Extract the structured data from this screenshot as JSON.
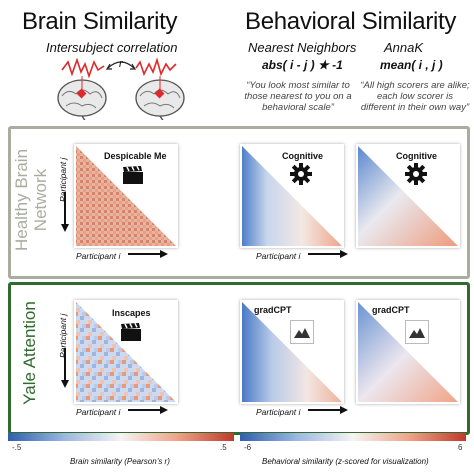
{
  "brain_similarity": {
    "title": "Brain Similarity",
    "subtitle": "Intersubject correlation",
    "r_label": "r"
  },
  "behavioral_similarity": {
    "title": "Behavioral Similarity",
    "models": [
      {
        "name": "Nearest Neighbors",
        "formula": "abs( i - j ) ★ -1",
        "quote": "“You look most similar to those nearest to you on a behavioral scale”"
      },
      {
        "name": "AnnaK",
        "formula": "mean( i , j )",
        "quote": "“All high scorers are alike; each low scorer is different in their own way”"
      }
    ]
  },
  "sections": [
    {
      "label": "Healthy Brain Network",
      "brain_condition": "Despicable Me",
      "behavior_condition": "Cognitive",
      "behavior_icon": "gear-icon",
      "brain_icon": "clapperboard-icon",
      "color": "#a9ad9f"
    },
    {
      "label": "Yale Attention",
      "brain_condition": "Inscapes",
      "behavior_condition": "gradCPT",
      "behavior_icon": "mountain-icon",
      "brain_icon": "clapperboard-icon",
      "color": "#2f6b2c"
    }
  ],
  "axes": {
    "participant_i": "Participant i",
    "participant_j": "Participant j"
  },
  "colorbars": {
    "brain": {
      "label": "Brain similarity (Pearson’s r)",
      "min": "-.5",
      "max": ".5"
    },
    "behavior": {
      "label": "Behavioral similarity (z-scored for visualization)",
      "min": "-6",
      "max": "6"
    }
  }
}
